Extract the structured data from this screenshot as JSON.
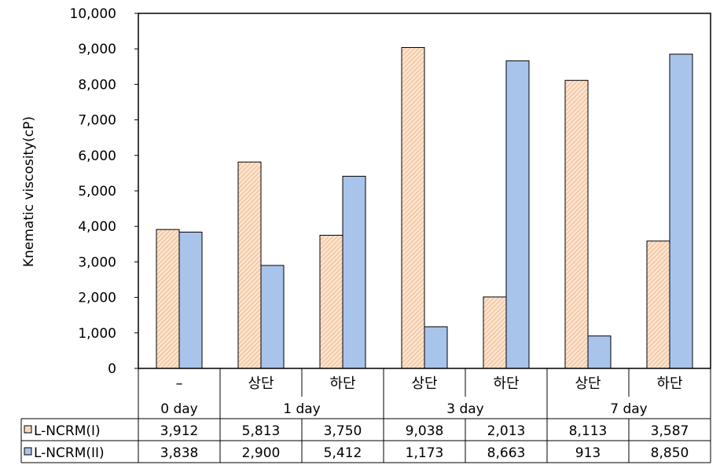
{
  "chart_data": {
    "type": "bar",
    "ylabel": "Knematic viscosity(cP)",
    "xlabel": "",
    "ylim": [
      0,
      10000
    ],
    "yticks": [
      0,
      1000,
      2000,
      3000,
      4000,
      5000,
      6000,
      7000,
      8000,
      9000,
      10000
    ],
    "ytick_labels": [
      "0",
      "1,000",
      "2,000",
      "3,000",
      "4,000",
      "5,000",
      "6,000",
      "7,000",
      "8,000",
      "9,000",
      "10,000"
    ],
    "categories": [
      "–",
      "상단",
      "하단",
      "상단",
      "하단",
      "상단",
      "하단"
    ],
    "groups": [
      {
        "label": "0 day",
        "span": 1
      },
      {
        "label": "1 day",
        "span": 2
      },
      {
        "label": "3 day",
        "span": 2
      },
      {
        "label": "7 day",
        "span": 2
      }
    ],
    "series": [
      {
        "name": "L-NCRM(I)",
        "color": "#fbd5b5",
        "pattern": "diagonal-hatch",
        "values": [
          3912,
          5813,
          3750,
          9038,
          2013,
          8113,
          3587
        ],
        "value_labels": [
          "3,912",
          "5,813",
          "3,750",
          "9,038",
          "2,013",
          "8,113",
          "3,587"
        ]
      },
      {
        "name": "L-NCRM(II)",
        "color": "#a9c4eb",
        "pattern": "solid",
        "values": [
          3838,
          2900,
          5412,
          1173,
          8663,
          913,
          8850
        ],
        "value_labels": [
          "3,838",
          "2,900",
          "5,412",
          "1,173",
          "8,663",
          "913",
          "8,850"
        ]
      }
    ],
    "grid": false,
    "legend": "in data table"
  }
}
